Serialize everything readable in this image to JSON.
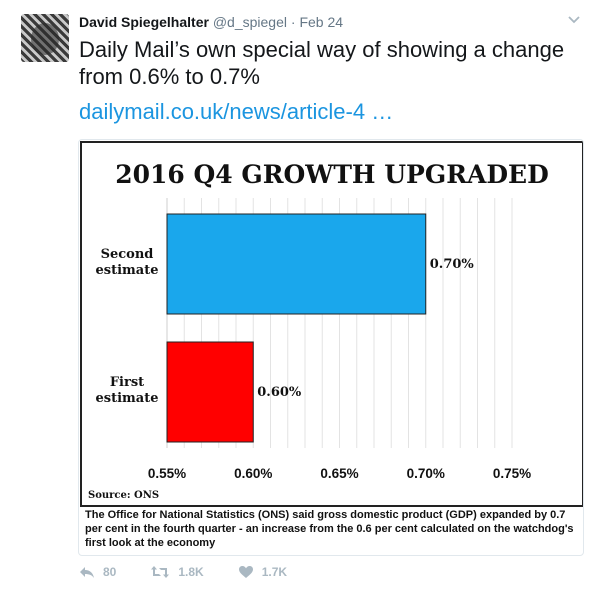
{
  "tweet": {
    "author_name": "David Spiegelhalter",
    "author_handle": "@d_spiegel",
    "separator": "·",
    "date": "Feb 24",
    "text": "Daily Mail’s own special way of showing a change from 0.6% to 0.7%",
    "link": "dailymail.co.uk/news/article-4 …"
  },
  "card": {
    "caption": "The Office for National Statistics (ONS) said gross domestic product (GDP) expanded by 0.7 per cent in the fourth quarter - an increase from the 0.6 per cent calculated on the watchdog's first look at the economy"
  },
  "chart_data": {
    "type": "bar",
    "orientation": "horizontal",
    "title": "2016 Q4 GROWTH UPGRADED",
    "source": "Source: ONS",
    "grid": true,
    "xlim": [
      0.55,
      0.75
    ],
    "xticks": [
      "0.55%",
      "0.60%",
      "0.65%",
      "0.70%",
      "0.75%"
    ],
    "xtick_values": [
      0.55,
      0.6,
      0.65,
      0.7,
      0.75
    ],
    "bars": [
      {
        "category_lines": [
          "Second",
          "estimate"
        ],
        "value": 0.7,
        "label": "0.70%",
        "color": "#1aa7ec"
      },
      {
        "category_lines": [
          "First",
          "estimate"
        ],
        "value": 0.6,
        "label": "0.60%",
        "color": "#ff0000"
      }
    ]
  },
  "actions": {
    "reply_count": "80",
    "retweet_count": "1.8K",
    "like_count": "1.7K"
  },
  "colors": {
    "link": "#1b95e0",
    "meta": "#657786",
    "action": "#aab8c2"
  }
}
